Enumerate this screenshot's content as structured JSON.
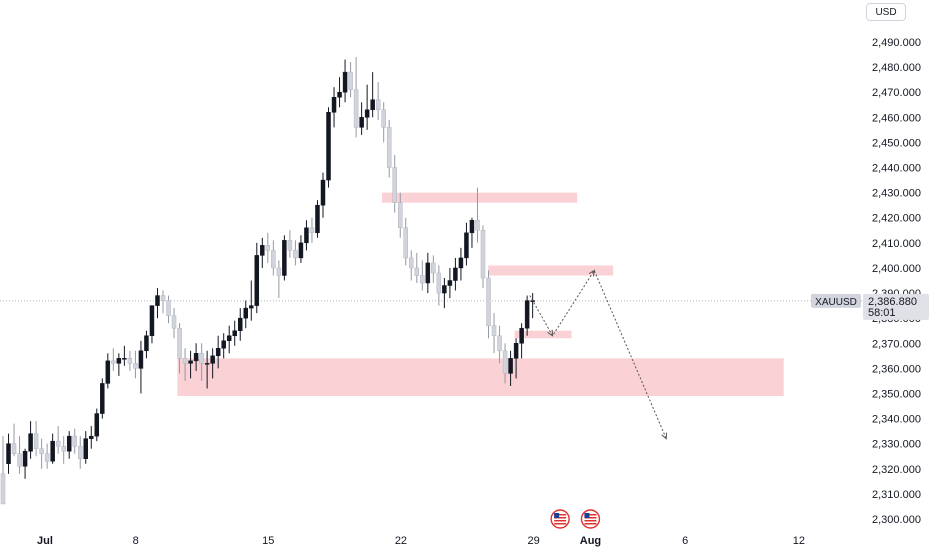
{
  "currency": "USD",
  "symbol_label": "XAUUSD",
  "last_price": "2,386.880",
  "countdown": "58:01",
  "colors": {
    "up": "#131722",
    "down": "#d1d4dc",
    "zone": "#fad2d6",
    "symbol_tag": "#d1d4dc",
    "price_tag": "#dfe1e6"
  },
  "icons": [
    "us-flag-icon",
    "us-flag-icon"
  ],
  "chart_data": {
    "type": "candlestick",
    "ylim": [
      2295,
      2496
    ],
    "x_ticks": [
      {
        "label": "Jul",
        "day": 0,
        "bold": true
      },
      {
        "label": "8",
        "day": 7,
        "bold": false
      },
      {
        "label": "15",
        "day": 14,
        "bold": false
      },
      {
        "label": "22",
        "day": 21,
        "bold": false
      },
      {
        "label": "29",
        "day": 28,
        "bold": false
      },
      {
        "label": "Aug",
        "day": 31,
        "bold": true
      },
      {
        "label": "6",
        "day": 36,
        "bold": false
      },
      {
        "label": "12",
        "day": 42,
        "bold": false
      }
    ],
    "y_ticks": [
      "2,490.000",
      "2,480.000",
      "2,470.000",
      "2,460.000",
      "2,450.000",
      "2,440.000",
      "2,430.000",
      "2,420.000",
      "2,410.000",
      "2,400.000",
      "2,390.000",
      "2,380.000",
      "2,370.000",
      "2,360.000",
      "2,350.000",
      "2,340.000",
      "2,330.000",
      "2,320.000",
      "2,310.000",
      "2,300.000"
    ],
    "y_tick_values": [
      2490,
      2480,
      2470,
      2460,
      2450,
      2440,
      2430,
      2420,
      2410,
      2400,
      2390,
      2380,
      2370,
      2360,
      2350,
      2340,
      2330,
      2320,
      2310,
      2300
    ],
    "candles": [
      [
        2318,
        2333,
        2306,
        2306
      ],
      [
        2322,
        2334,
        2318,
        2330
      ],
      [
        2330,
        2338,
        2325,
        2326
      ],
      [
        2326,
        2333,
        2318,
        2321
      ],
      [
        2321,
        2328,
        2316,
        2327
      ],
      [
        2327,
        2339,
        2324,
        2334
      ],
      [
        2334,
        2339,
        2325,
        2328
      ],
      [
        2328,
        2332,
        2320,
        2326
      ],
      [
        2326,
        2330,
        2320,
        2323
      ],
      [
        2323,
        2334,
        2322,
        2331
      ],
      [
        2331,
        2337,
        2326,
        2329
      ],
      [
        2329,
        2333,
        2322,
        2327
      ],
      [
        2327,
        2335,
        2324,
        2333
      ],
      [
        2333,
        2336,
        2326,
        2329
      ],
      [
        2329,
        2333,
        2320,
        2324
      ],
      [
        2324,
        2335,
        2322,
        2332
      ],
      [
        2332,
        2337,
        2328,
        2333
      ],
      [
        2333,
        2344,
        2331,
        2342
      ],
      [
        2342,
        2356,
        2340,
        2354
      ],
      [
        2354,
        2366,
        2352,
        2363
      ],
      [
        2363,
        2368,
        2359,
        2362
      ],
      [
        2362,
        2366,
        2357,
        2364
      ],
      [
        2364,
        2369,
        2361,
        2364
      ],
      [
        2364,
        2367,
        2359,
        2362
      ],
      [
        2362,
        2367,
        2356,
        2360
      ],
      [
        2360,
        2371,
        2350,
        2367
      ],
      [
        2367,
        2375,
        2364,
        2373
      ],
      [
        2373,
        2385,
        2370,
        2385
      ],
      [
        2385,
        2392,
        2380,
        2389
      ],
      [
        2389,
        2391,
        2382,
        2387
      ],
      [
        2387,
        2389,
        2378,
        2381
      ],
      [
        2381,
        2384,
        2372,
        2376
      ],
      [
        2376,
        2378,
        2358,
        2364
      ],
      [
        2364,
        2368,
        2355,
        2362
      ],
      [
        2362,
        2367,
        2356,
        2363
      ],
      [
        2363,
        2370,
        2359,
        2366
      ],
      [
        2366,
        2370,
        2355,
        2362
      ],
      [
        2362,
        2367,
        2352,
        2362
      ],
      [
        2362,
        2368,
        2356,
        2365
      ],
      [
        2365,
        2373,
        2360,
        2368
      ],
      [
        2368,
        2374,
        2364,
        2371
      ],
      [
        2371,
        2377,
        2366,
        2373
      ],
      [
        2373,
        2379,
        2369,
        2375
      ],
      [
        2375,
        2384,
        2371,
        2380
      ],
      [
        2380,
        2387,
        2376,
        2384
      ],
      [
        2384,
        2395,
        2379,
        2385
      ],
      [
        2385,
        2410,
        2382,
        2405
      ],
      [
        2405,
        2412,
        2400,
        2409
      ],
      [
        2409,
        2414,
        2402,
        2407
      ],
      [
        2407,
        2411,
        2397,
        2400
      ],
      [
        2400,
        2403,
        2388,
        2397
      ],
      [
        2397,
        2413,
        2395,
        2411
      ],
      [
        2411,
        2415,
        2404,
        2407
      ],
      [
        2407,
        2411,
        2401,
        2404
      ],
      [
        2404,
        2413,
        2402,
        2410
      ],
      [
        2410,
        2419,
        2407,
        2416
      ],
      [
        2416,
        2420,
        2410,
        2414
      ],
      [
        2414,
        2427,
        2412,
        2425
      ],
      [
        2425,
        2438,
        2420,
        2435
      ],
      [
        2435,
        2464,
        2432,
        2462
      ],
      [
        2462,
        2472,
        2456,
        2468
      ],
      [
        2468,
        2476,
        2464,
        2470
      ],
      [
        2470,
        2483,
        2466,
        2478
      ],
      [
        2478,
        2482,
        2468,
        2471
      ],
      [
        2471,
        2484,
        2452,
        2456
      ],
      [
        2456,
        2466,
        2453,
        2460
      ],
      [
        2460,
        2473,
        2455,
        2463
      ],
      [
        2463,
        2478,
        2460,
        2467
      ],
      [
        2467,
        2474,
        2459,
        2463
      ],
      [
        2463,
        2466,
        2450,
        2456
      ],
      [
        2456,
        2459,
        2436,
        2440
      ],
      [
        2440,
        2445,
        2422,
        2426
      ],
      [
        2426,
        2430,
        2412,
        2416
      ],
      [
        2416,
        2420,
        2401,
        2404
      ],
      [
        2404,
        2407,
        2395,
        2400
      ],
      [
        2400,
        2406,
        2394,
        2397
      ],
      [
        2397,
        2403,
        2391,
        2394
      ],
      [
        2394,
        2406,
        2390,
        2402
      ],
      [
        2402,
        2405,
        2394,
        2398
      ],
      [
        2398,
        2401,
        2385,
        2390
      ],
      [
        2390,
        2396,
        2384,
        2393
      ],
      [
        2393,
        2400,
        2388,
        2395
      ],
      [
        2395,
        2404,
        2391,
        2400
      ],
      [
        2400,
        2408,
        2395,
        2404
      ],
      [
        2404,
        2418,
        2401,
        2414
      ],
      [
        2414,
        2420,
        2408,
        2419
      ],
      [
        2419,
        2432,
        2410,
        2415
      ],
      [
        2415,
        2417,
        2392,
        2396
      ],
      [
        2396,
        2399,
        2372,
        2377
      ],
      [
        2377,
        2382,
        2366,
        2373
      ],
      [
        2373,
        2377,
        2362,
        2367
      ],
      [
        2367,
        2370,
        2354,
        2358
      ],
      [
        2358,
        2367,
        2353,
        2364
      ],
      [
        2364,
        2372,
        2356,
        2370
      ],
      [
        2370,
        2378,
        2364,
        2376
      ],
      [
        2376,
        2389,
        2373,
        2387
      ],
      [
        2387,
        2390,
        2380,
        2387
      ]
    ],
    "zones": [
      {
        "low": 2426,
        "high": 2430,
        "from_day": 20.0,
        "to_day": 30.3
      },
      {
        "low": 2397,
        "high": 2401,
        "from_day": 25.6,
        "to_day": 32.2
      },
      {
        "low": 2372,
        "high": 2375,
        "from_day": 27.0,
        "to_day": 30.0
      },
      {
        "low": 2349,
        "high": 2364,
        "from_day": 9.2,
        "to_day": 41.2
      }
    ],
    "projection": [
      {
        "day": 27.8,
        "price": 2389
      },
      {
        "day": 29.0,
        "price": 2373
      },
      {
        "day": 31.2,
        "price": 2399
      },
      {
        "day": 35.0,
        "price": 2332
      }
    ],
    "event_markers": [
      {
        "day": 29.4
      },
      {
        "day": 31.0
      }
    ],
    "current_price_value": 2386.88
  }
}
